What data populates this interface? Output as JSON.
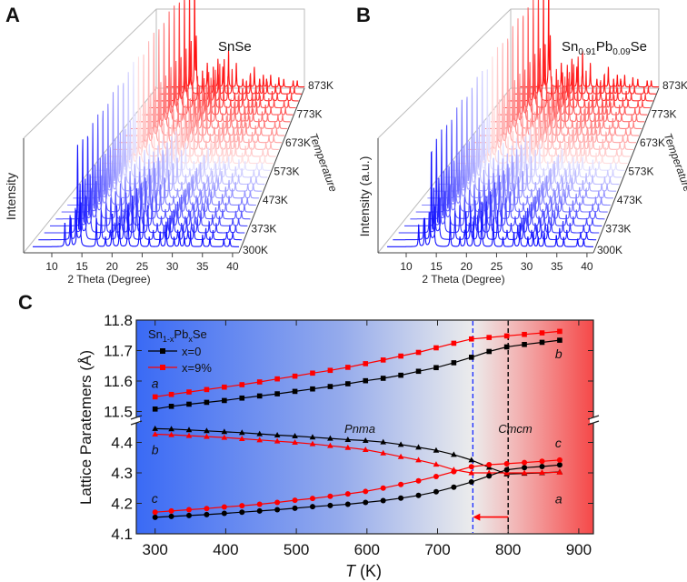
{
  "panels": {
    "A": {
      "letter": "A",
      "title_parts": [
        "SnSe"
      ],
      "ylabel": "Intensity"
    },
    "B": {
      "letter": "B",
      "title_parts": [
        "Sn",
        "0.91",
        "Pb",
        "0.09",
        "Se"
      ],
      "ylabel": "Intensity (a.u.)"
    },
    "C": {
      "letter": "C"
    }
  },
  "chart_data": [
    {
      "panel": "A",
      "type": "line",
      "style": "3D waterfall of diffraction patterns",
      "title": "SnSe",
      "xlabel": "2 Theta (Degree)",
      "ylabel": "Intensity",
      "zlabel": "Temperature",
      "xticks": [
        "10",
        "15",
        "20",
        "25",
        "30",
        "35",
        "40"
      ],
      "xlim": [
        7,
        41
      ],
      "zticks": [
        "300K",
        "373K",
        "473K",
        "573K",
        "673K",
        "773K",
        "873K"
      ],
      "trace_temperatures_K": [
        300,
        323,
        348,
        373,
        398,
        423,
        448,
        473,
        498,
        523,
        548,
        573,
        598,
        623,
        648,
        673,
        698,
        723,
        748,
        773,
        798,
        823,
        848,
        873
      ],
      "peaks_2theta": [
        12.3,
        13.3,
        14.4,
        14.8,
        17.5,
        19.0,
        20.1,
        21.3,
        22.7,
        24.6,
        26.2,
        28.0,
        29.0,
        30.3,
        31.2,
        32.0,
        33.0,
        35.0,
        36.2,
        38.5,
        39.5
      ],
      "peaks_rel_intensity": [
        0.25,
        0.3,
        1.0,
        0.6,
        0.3,
        0.1,
        0.35,
        0.25,
        0.45,
        0.3,
        0.1,
        0.15,
        0.25,
        0.1,
        0.15,
        0.1,
        0.15,
        0.12,
        0.1,
        0.08,
        0.08
      ],
      "color_scale": [
        "#1010ff",
        "#ffffff",
        "#ff1010"
      ]
    },
    {
      "panel": "B",
      "type": "line",
      "style": "3D waterfall of diffraction patterns",
      "title": "Sn0.91Pb0.09Se",
      "xlabel": "2 Theta (Degree)",
      "ylabel": "Intensity (a.u.)",
      "zlabel": "Temperature",
      "xticks": [
        "10",
        "15",
        "20",
        "25",
        "30",
        "35",
        "40"
      ],
      "xlim": [
        7,
        41
      ],
      "zticks": [
        "300K",
        "373K",
        "473K",
        "573K",
        "673K",
        "773K",
        "873K"
      ],
      "trace_temperatures_K": [
        300,
        323,
        348,
        373,
        398,
        423,
        448,
        473,
        498,
        523,
        548,
        573,
        598,
        623,
        648,
        673,
        698,
        723,
        748,
        773,
        798,
        823,
        848,
        873
      ],
      "peaks_2theta": [
        12.2,
        13.2,
        14.3,
        14.7,
        17.4,
        19.0,
        20.0,
        21.2,
        22.6,
        24.5,
        26.1,
        27.9,
        28.9,
        30.2,
        31.1,
        31.9,
        32.9,
        34.9,
        36.1,
        38.4,
        39.4
      ],
      "peaks_rel_intensity": [
        0.22,
        0.28,
        1.0,
        0.6,
        0.3,
        0.1,
        0.35,
        0.25,
        0.45,
        0.3,
        0.1,
        0.15,
        0.25,
        0.1,
        0.15,
        0.1,
        0.15,
        0.12,
        0.1,
        0.08,
        0.08
      ],
      "color_scale": [
        "#1010ff",
        "#ffffff",
        "#ff1010"
      ]
    },
    {
      "panel": "C",
      "type": "line",
      "xlabel_parts": [
        "T",
        " (K)"
      ],
      "ylabel": "Lattice Paratemers (Å)",
      "xlim": [
        274,
        921
      ],
      "xticks": [
        300,
        400,
        500,
        600,
        700,
        800,
        900
      ],
      "y_broken_axis": {
        "upper": [
          11.47,
          11.8
        ],
        "lower": [
          4.1,
          4.47
        ]
      },
      "yticks": [
        "11.8",
        "11.7",
        "11.6",
        "11.5",
        "4.4",
        "4.3",
        "4.2",
        "4.1"
      ],
      "legend_title_parts": [
        "Sn",
        "1-x",
        "Pb",
        "x",
        "Se"
      ],
      "legend_placement": "top-left",
      "background": "blue-to-white-to-red gradient along T",
      "x": [
        300,
        323,
        348,
        373,
        398,
        423,
        448,
        473,
        498,
        523,
        548,
        573,
        598,
        623,
        648,
        673,
        698,
        723,
        748,
        773,
        798,
        823,
        848,
        873
      ],
      "series": [
        {
          "name": "x=0",
          "color": "#000000",
          "marker": "square",
          "param_label_start": "",
          "param_label_end": "b",
          "values": [
            11.508,
            11.517,
            11.524,
            11.53,
            11.536,
            11.544,
            11.551,
            11.558,
            11.566,
            11.574,
            11.582,
            11.591,
            11.601,
            11.609,
            11.619,
            11.632,
            11.644,
            11.66,
            11.678,
            11.697,
            11.712,
            11.72,
            11.727,
            11.734
          ]
        },
        {
          "name": "x=9%",
          "color": "#ff0000",
          "marker": "square",
          "param_label_start": "a",
          "param_label_end": "",
          "values": [
            11.548,
            11.556,
            11.564,
            11.572,
            11.58,
            11.588,
            11.597,
            11.607,
            11.616,
            11.626,
            11.635,
            11.645,
            11.657,
            11.669,
            11.682,
            11.694,
            11.709,
            11.724,
            11.738,
            11.743,
            11.748,
            11.753,
            11.758,
            11.763
          ]
        },
        {
          "color": "#000000",
          "marker": "triangle",
          "param_label_start": "b",
          "param_label_end": "",
          "values": [
            4.445,
            4.444,
            4.441,
            4.438,
            4.435,
            4.432,
            4.428,
            4.424,
            4.421,
            4.417,
            4.413,
            4.409,
            4.406,
            4.401,
            4.393,
            4.384,
            4.374,
            4.36,
            4.342,
            4.318,
            4.296,
            4.298,
            4.3,
            4.303
          ]
        },
        {
          "color": "#ff0000",
          "marker": "triangle",
          "param_label_start": "",
          "param_label_end": "a",
          "values": [
            4.427,
            4.425,
            4.422,
            4.419,
            4.416,
            4.412,
            4.408,
            4.404,
            4.4,
            4.395,
            4.389,
            4.383,
            4.376,
            4.365,
            4.353,
            4.342,
            4.328,
            4.31,
            4.3,
            4.3,
            4.3,
            4.3,
            4.301,
            4.302
          ]
        },
        {
          "color": "#000000",
          "marker": "circle",
          "param_label_start": "",
          "param_label_end": "",
          "values": [
            4.154,
            4.157,
            4.16,
            4.163,
            4.167,
            4.171,
            4.175,
            4.179,
            4.184,
            4.189,
            4.193,
            4.197,
            4.203,
            4.209,
            4.217,
            4.226,
            4.238,
            4.253,
            4.27,
            4.29,
            4.31,
            4.317,
            4.321,
            4.326
          ]
        },
        {
          "color": "#ff0000",
          "marker": "circle",
          "param_label_start": "c",
          "param_label_end": "c",
          "values": [
            4.171,
            4.175,
            4.179,
            4.183,
            4.188,
            4.192,
            4.197,
            4.203,
            4.21,
            4.216,
            4.223,
            4.231,
            4.239,
            4.25,
            4.262,
            4.274,
            4.288,
            4.304,
            4.32,
            4.327,
            4.33,
            4.334,
            4.338,
            4.342
          ]
        }
      ],
      "vlines": [
        {
          "x": 750,
          "color": "#2030ff",
          "style": "dashed"
        },
        {
          "x": 800,
          "color": "#000000",
          "style": "dashed"
        }
      ],
      "arrow": {
        "from": 800,
        "to": 750,
        "y": 4.155,
        "color": "#ff0000"
      },
      "annotations": [
        {
          "text": "Pnma",
          "x": 590,
          "y": 4.485
        },
        {
          "text": "Cmcm",
          "x": 810,
          "y": 4.485
        }
      ]
    }
  ]
}
